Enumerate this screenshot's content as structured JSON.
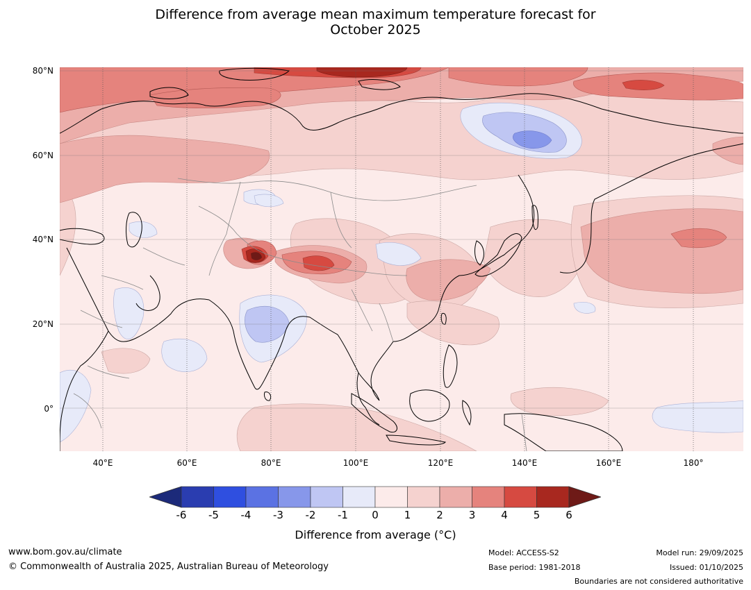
{
  "title": {
    "line1": "Difference from average mean maximum temperature forecast for",
    "line2": "October 2025"
  },
  "map": {
    "lat_labels": [
      "80°N",
      "60°N",
      "40°N",
      "20°N",
      "0°"
    ],
    "lon_labels": [
      "40°E",
      "60°E",
      "80°E",
      "100°E",
      "120°E",
      "140°E",
      "160°E",
      "180°"
    ],
    "lat_values": [
      80,
      60,
      40,
      20,
      0
    ],
    "lon_values": [
      40,
      60,
      80,
      100,
      120,
      140,
      160,
      180
    ],
    "extent": {
      "lon_min": 30,
      "lon_max": 191,
      "lat_min": -10,
      "lat_max": 81
    }
  },
  "legend": {
    "ticks": [
      "-6",
      "-5",
      "-4",
      "-3",
      "-2",
      "-1",
      "0",
      "1",
      "2",
      "3",
      "4",
      "5",
      "6"
    ],
    "colors": [
      "#1c2a7a",
      "#2a3db0",
      "#2f4fe0",
      "#5b72e3",
      "#8797ea",
      "#bfc6f3",
      "#e7eaf9",
      "#fcebea",
      "#f5d2cf",
      "#ecaeaa",
      "#e5837d",
      "#d64a41",
      "#a8281f",
      "#6e1a17"
    ],
    "label": "Difference from average (°C)"
  },
  "footer": {
    "website": "www.bom.gov.au/climate",
    "copyright": "© Commonwealth of Australia 2025, Australian Bureau of Meteorology",
    "model": "Model: ACCESS-S2",
    "base_period": "Base period: 1981-2018",
    "model_run": "Model run: 29/09/2025",
    "issued": "Issued: 01/10/2025",
    "disclaimer": "Boundaries are not considered authoritative"
  }
}
